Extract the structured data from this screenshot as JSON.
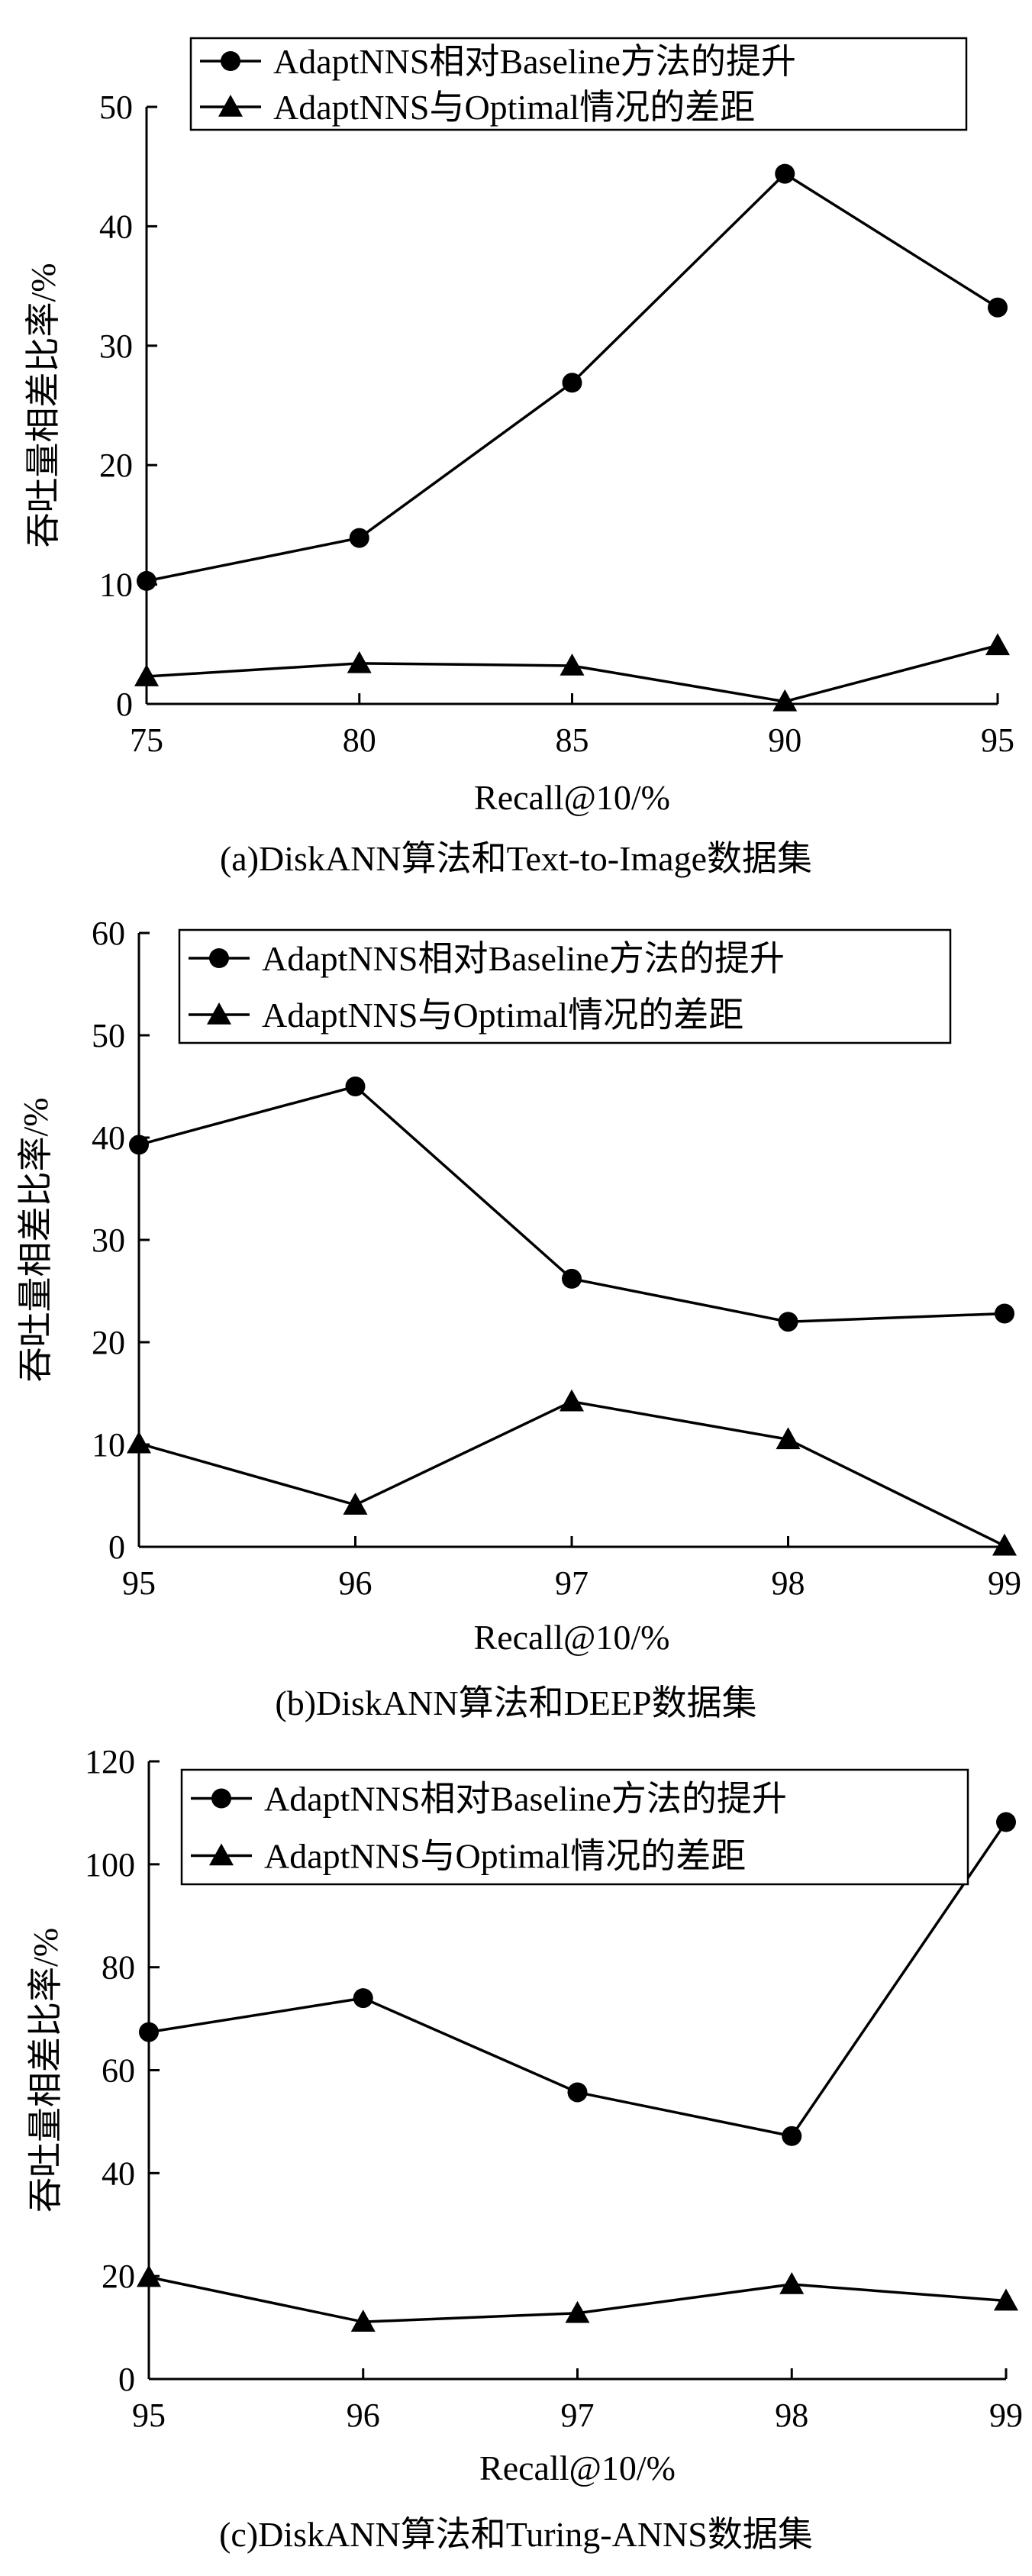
{
  "chart_data": [
    {
      "type": "line",
      "caption": "(a)DiskANN算法和Text-to-Image数据集",
      "xlabel": "Recall@10/%",
      "ylabel": "吞吐量相差比率/%",
      "x": [
        75,
        80,
        85,
        90,
        95
      ],
      "xticks": [
        "75",
        "80",
        "85",
        "90",
        "95"
      ],
      "xlim": [
        75,
        95
      ],
      "ylim": [
        0,
        50
      ],
      "yticks": [
        "0",
        "10",
        "20",
        "30",
        "40",
        "50"
      ],
      "legend_position": "top",
      "series": [
        {
          "name": "AdaptNNS相对Baseline方法的提升",
          "marker": "circle",
          "values": [
            10.3,
            13.9,
            26.9,
            44.4,
            33.2
          ]
        },
        {
          "name": "AdaptNNS与Optimal情况的差距",
          "marker": "triangle",
          "values": [
            2.3,
            3.4,
            3.2,
            0.2,
            4.9
          ]
        }
      ]
    },
    {
      "type": "line",
      "caption": "(b)DiskANN算法和DEEP数据集",
      "xlabel": "Recall@10/%",
      "ylabel": "吞吐量相差比率/%",
      "x": [
        95,
        96,
        97,
        98,
        99
      ],
      "xticks": [
        "95",
        "96",
        "97",
        "98",
        "99"
      ],
      "xlim": [
        95,
        99
      ],
      "ylim": [
        0,
        60
      ],
      "yticks": [
        "0",
        "10",
        "20",
        "30",
        "40",
        "50",
        "60"
      ],
      "legend_position": "top-right",
      "series": [
        {
          "name": "AdaptNNS相对Baseline方法的提升",
          "marker": "circle",
          "values": [
            39.3,
            45.0,
            26.2,
            22.0,
            22.8
          ]
        },
        {
          "name": "AdaptNNS与Optimal情况的差距",
          "marker": "triangle",
          "values": [
            10.1,
            4.1,
            14.2,
            10.5,
            0.1
          ]
        }
      ]
    },
    {
      "type": "line",
      "caption": "(c)DiskANN算法和Turing-ANNS数据集",
      "xlabel": "Recall@10/%",
      "ylabel": "吞吐量相差比率/%",
      "x": [
        95,
        96,
        97,
        98,
        99
      ],
      "xticks": [
        "95",
        "96",
        "97",
        "98",
        "99"
      ],
      "xlim": [
        95,
        99
      ],
      "ylim": [
        0,
        120
      ],
      "yticks": [
        "0",
        "20",
        "40",
        "60",
        "80",
        "100",
        "120"
      ],
      "legend_position": "top-right",
      "series": [
        {
          "name": "AdaptNNS相对Baseline方法的提升",
          "marker": "circle",
          "values": [
            67.4,
            74.0,
            55.7,
            47.2,
            108.2
          ]
        },
        {
          "name": "AdaptNNS与Optimal情况的差距",
          "marker": "triangle",
          "values": [
            19.8,
            11.1,
            12.8,
            18.4,
            15.2
          ]
        }
      ]
    }
  ]
}
